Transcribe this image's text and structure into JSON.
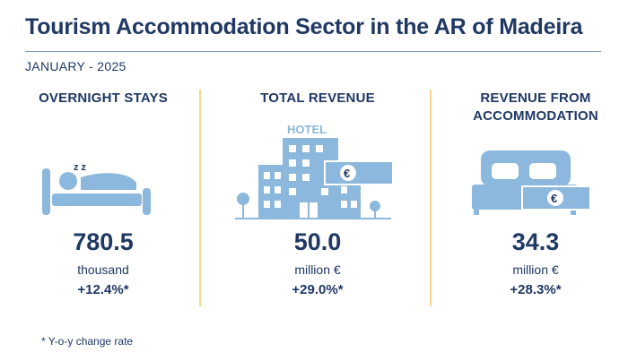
{
  "title": "Tourism Accommodation Sector in the AR of Madeira",
  "period": "JANUARY - 2025",
  "colors": {
    "navy": "#1f3864",
    "icon_blue": "#8bb8dc",
    "separator": "#f6d78a"
  },
  "metrics": [
    {
      "heading": "OVERNIGHT STAYS",
      "icon": "sleeping-person-icon",
      "value": "780.5",
      "unit": "thousand",
      "change": "+12.4%*"
    },
    {
      "heading": "TOTAL REVENUE",
      "icon": "hotel-building-icon",
      "icon_text": "HOTEL",
      "value": "50.0",
      "unit": "million €",
      "change": "+29.0%*"
    },
    {
      "heading": "REVENUE FROM ACCOMMODATION",
      "icon": "bed-with-money-icon",
      "value": "34.3",
      "unit": "million €",
      "change": "+28.3%*"
    }
  ],
  "footnote": "* Y-o-y change rate",
  "euro_symbol": "€",
  "zzz": "z z"
}
